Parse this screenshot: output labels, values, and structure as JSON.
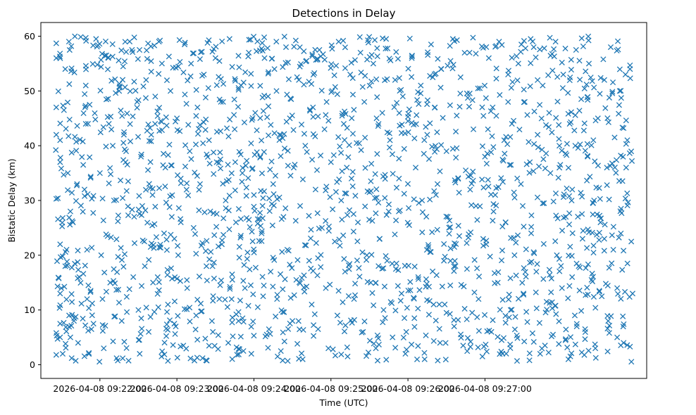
{
  "chart_data": {
    "type": "scatter",
    "title": "Detections in Delay",
    "xlabel": "Time (UTC)",
    "ylabel": "Bistatic Delay (km)",
    "x_unit": "seconds after 2026-04-08 09:21:25 UTC",
    "xlim": [
      -11,
      461
    ],
    "ylim": [
      -2.5,
      62.5
    ],
    "x_ticks": [
      {
        "value": 35,
        "label": "2026-04-08 09:22:00"
      },
      {
        "value": 95,
        "label": "2026-04-08 09:23:00"
      },
      {
        "value": 155,
        "label": "2026-04-08 09:24:00"
      },
      {
        "value": 215,
        "label": "2026-04-08 09:25:00"
      },
      {
        "value": 275,
        "label": "2026-04-08 09:26:00"
      },
      {
        "value": 335,
        "label": "2026-04-08 09:27:00"
      }
    ],
    "y_ticks": [
      {
        "value": 0,
        "label": "0"
      },
      {
        "value": 10,
        "label": "10"
      },
      {
        "value": 20,
        "label": "20"
      },
      {
        "value": 30,
        "label": "30"
      },
      {
        "value": 40,
        "label": "40"
      },
      {
        "value": 50,
        "label": "50"
      },
      {
        "value": 60,
        "label": "60"
      }
    ],
    "marker": "x",
    "color": "#1f77b4",
    "grid": false,
    "legend": "none",
    "generated_points": {
      "count": 1500,
      "x_range": [
        0,
        450
      ],
      "y_range": [
        0.5,
        60
      ],
      "note": "dense uniform-like cloud of x markers"
    },
    "series": [
      {
        "name": "detections",
        "points": [
          [
            1,
            58.7
          ],
          [
            1,
            56
          ],
          [
            1,
            47
          ],
          [
            1,
            42
          ],
          [
            1,
            30.3
          ],
          [
            1,
            5.8
          ],
          [
            1,
            1.8
          ],
          [
            4,
            41
          ],
          [
            4,
            37
          ],
          [
            4,
            22
          ],
          [
            4,
            13
          ],
          [
            4,
            7.5
          ],
          [
            4,
            5
          ],
          [
            6,
            26.8
          ],
          [
            6,
            19.8
          ],
          [
            6,
            2
          ],
          [
            7,
            46.5
          ],
          [
            8,
            18
          ],
          [
            8,
            54
          ],
          [
            10,
            35
          ],
          [
            11,
            9
          ],
          [
            12,
            28
          ],
          [
            12,
            5
          ],
          [
            13,
            1.2
          ],
          [
            14,
            26
          ],
          [
            15,
            8.5
          ],
          [
            18,
            4
          ],
          [
            19,
            16
          ],
          [
            22,
            36.5
          ],
          [
            23,
            32
          ],
          [
            24,
            59.7
          ],
          [
            24,
            51
          ],
          [
            24,
            44
          ],
          [
            25,
            21
          ],
          [
            25,
            12
          ],
          [
            26,
            14.5
          ],
          [
            27,
            47.5
          ],
          [
            29,
            11.2
          ],
          [
            30,
            7.5
          ],
          [
            32,
            59.5
          ],
          [
            33,
            54.8
          ],
          [
            35,
            35
          ],
          [
            36,
            20
          ],
          [
            37,
            12
          ],
          [
            38,
            3
          ],
          [
            40,
            56.5
          ],
          [
            41,
            23.5
          ],
          [
            42,
            44
          ],
          [
            43,
            15
          ],
          [
            45,
            40
          ],
          [
            46,
            30
          ],
          [
            48,
            1.2
          ],
          [
            49,
            26.2
          ],
          [
            50,
            50
          ],
          [
            52,
            8
          ],
          [
            54,
            4.2
          ],
          [
            55,
            37
          ],
          [
            57,
            33.5
          ],
          [
            58,
            13.8
          ],
          [
            60,
            57.5
          ],
          [
            62,
            22.2
          ],
          [
            64,
            48
          ],
          [
            65,
            10
          ],
          [
            66,
            2
          ],
          [
            67,
            38
          ],
          [
            68,
            29
          ],
          [
            70,
            18
          ],
          [
            71,
            52
          ],
          [
            73,
            6
          ],
          [
            75,
            42
          ],
          [
            76,
            31
          ],
          [
            78,
            44
          ],
          [
            80,
            16
          ],
          [
            81,
            59
          ],
          [
            83,
            1.5
          ],
          [
            85,
            24
          ],
          [
            86,
            36
          ],
          [
            88,
            11
          ],
          [
            90,
            50
          ],
          [
            91,
            27
          ],
          [
            93,
            7.5
          ],
          [
            95,
            45
          ],
          [
            96,
            20
          ],
          [
            98,
            34
          ],
          [
            100,
            3.5
          ],
          [
            101,
            58.5
          ],
          [
            103,
            14
          ],
          [
            105,
            39
          ],
          [
            106,
            55
          ],
          [
            108,
            25
          ],
          [
            110,
            9
          ],
          [
            111,
            47
          ],
          [
            113,
            33
          ],
          [
            115,
            1.2
          ],
          [
            116,
            53
          ],
          [
            118,
            18
          ],
          [
            120,
            41
          ],
          [
            121,
            28
          ],
          [
            123,
            6
          ],
          [
            125,
            56
          ],
          [
            126,
            37
          ],
          [
            128,
            12
          ],
          [
            130,
            22
          ],
          [
            131,
            48
          ],
          [
            133,
            30
          ],
          [
            135,
            4
          ],
          [
            136,
            59.5
          ],
          [
            138,
            16.5
          ],
          [
            140,
            43
          ],
          [
            141,
            26
          ],
          [
            143,
            8
          ],
          [
            145,
            51
          ],
          [
            146,
            35
          ],
          [
            148,
            14
          ],
          [
            150,
            20.5
          ],
          [
            151,
            57
          ],
          [
            153,
            2
          ],
          [
            155,
            31
          ],
          [
            156,
            46
          ],
          [
            158,
            10.5
          ],
          [
            160,
            38
          ],
          [
            161,
            24
          ],
          [
            163,
            59.8
          ],
          [
            165,
            5.5
          ],
          [
            166,
            49
          ],
          [
            168,
            17
          ],
          [
            170,
            33
          ],
          [
            171,
            54
          ],
          [
            173,
            12
          ],
          [
            175,
            42
          ],
          [
            176,
            2.5
          ],
          [
            178,
            27
          ],
          [
            180,
            58
          ],
          [
            181,
            21
          ],
          [
            183,
            45
          ],
          [
            185,
            8
          ],
          [
            186,
            36
          ],
          [
            188,
            15.5
          ],
          [
            190,
            52
          ],
          [
            191,
            29
          ],
          [
            193,
            1
          ],
          [
            195,
            40
          ],
          [
            196,
            55.5
          ],
          [
            198,
            19
          ],
          [
            200,
            11
          ],
          [
            201,
            47
          ],
          [
            203,
            32
          ],
          [
            205,
            6.5
          ],
          [
            206,
            57.5
          ],
          [
            208,
            25
          ],
          [
            210,
            43
          ],
          [
            211,
            14
          ],
          [
            213,
            3
          ],
          [
            215,
            37
          ],
          [
            216,
            50
          ],
          [
            218,
            22.5
          ],
          [
            220,
            9
          ],
          [
            221,
            59
          ],
          [
            223,
            30
          ],
          [
            225,
            44
          ],
          [
            226,
            17
          ],
          [
            228,
            1.5
          ],
          [
            230,
            53
          ],
          [
            231,
            34
          ],
          [
            233,
            12
          ],
          [
            235,
            40.5
          ],
          [
            236,
            26
          ],
          [
            238,
            57
          ],
          [
            240,
            6
          ],
          [
            241,
            48
          ],
          [
            243,
            20
          ],
          [
            245,
            31.5
          ],
          [
            246,
            15
          ],
          [
            248,
            55
          ],
          [
            250,
            3
          ],
          [
            251,
            38.5
          ],
          [
            253,
            23
          ],
          [
            255,
            46
          ],
          [
            256,
            10
          ],
          [
            258,
            59.5
          ],
          [
            260,
            28
          ],
          [
            261,
            41
          ],
          [
            263,
            5
          ],
          [
            265,
            52
          ],
          [
            266,
            18.5
          ],
          [
            268,
            34
          ],
          [
            270,
            13
          ],
          [
            271,
            49
          ],
          [
            273,
            2
          ],
          [
            275,
            44.5
          ],
          [
            276,
            25.5
          ],
          [
            278,
            56
          ],
          [
            280,
            8.5
          ],
          [
            281,
            36
          ],
          [
            283,
            16
          ],
          [
            285,
            51
          ],
          [
            286,
            30
          ],
          [
            288,
            1
          ],
          [
            290,
            42
          ],
          [
            291,
            21.5
          ],
          [
            293,
            58.5
          ],
          [
            295,
            11
          ],
          [
            296,
            47
          ],
          [
            298,
            33
          ],
          [
            300,
            4
          ],
          [
            301,
            54
          ],
          [
            303,
            19
          ],
          [
            305,
            39
          ],
          [
            306,
            27
          ],
          [
            308,
            14.5
          ],
          [
            310,
            59.5
          ],
          [
            311,
            7
          ],
          [
            313,
            45.5
          ],
          [
            315,
            23.5
          ],
          [
            316,
            52.5
          ],
          [
            318,
            3.5
          ],
          [
            320,
            35.5
          ],
          [
            321,
            17.5
          ],
          [
            323,
            57
          ],
          [
            325,
            9.5
          ],
          [
            326,
            43
          ],
          [
            328,
            29
          ],
          [
            330,
            12
          ],
          [
            331,
            50.5
          ],
          [
            333,
            1.5
          ],
          [
            335,
            38
          ],
          [
            336,
            22
          ],
          [
            338,
            56
          ],
          [
            340,
            6
          ],
          [
            341,
            47
          ],
          [
            343,
            31
          ],
          [
            345,
            15
          ],
          [
            346,
            59
          ],
          [
            348,
            4.5
          ],
          [
            350,
            41
          ],
          [
            351,
            26
          ],
          [
            353,
            53
          ],
          [
            355,
            10
          ],
          [
            356,
            44
          ],
          [
            358,
            20
          ],
          [
            360,
            0.7
          ],
          [
            361,
            55
          ],
          [
            363,
            33
          ],
          [
            365,
            13
          ],
          [
            366,
            48
          ],
          [
            368,
            7.8
          ],
          [
            370,
            37
          ],
          [
            371,
            24
          ],
          [
            373,
            58
          ],
          [
            375,
            17
          ],
          [
            376,
            42
          ],
          [
            378,
            2
          ],
          [
            380,
            51
          ],
          [
            381,
            29.5
          ],
          [
            383,
            11.5
          ],
          [
            385,
            46
          ],
          [
            386,
            35
          ],
          [
            388,
            5.5
          ],
          [
            390,
            59
          ],
          [
            391,
            20
          ],
          [
            393,
            40
          ],
          [
            395,
            14
          ],
          [
            396,
            53
          ],
          [
            398,
            27
          ],
          [
            400,
            1
          ],
          [
            401,
            44
          ],
          [
            403,
            32
          ],
          [
            405,
            9
          ],
          [
            406,
            57.5
          ],
          [
            408,
            18
          ],
          [
            410,
            48.5
          ],
          [
            411,
            23
          ],
          [
            413,
            6.5
          ],
          [
            415,
            38
          ],
          [
            416,
            55
          ],
          [
            418,
            15.5
          ],
          [
            420,
            30
          ],
          [
            421,
            3
          ],
          [
            423,
            45
          ],
          [
            425,
            26
          ],
          [
            426,
            12.5
          ],
          [
            428,
            52
          ],
          [
            430,
            36
          ],
          [
            431,
            8
          ],
          [
            433,
            58
          ],
          [
            435,
            21
          ],
          [
            436,
            41.5
          ],
          [
            438,
            14
          ],
          [
            440,
            50
          ],
          [
            441,
            28.5
          ],
          [
            443,
            4
          ],
          [
            445,
            36
          ],
          [
            446,
            18.5
          ],
          [
            448,
            54
          ],
          [
            449,
            22.5
          ],
          [
            450,
            13
          ]
        ]
      }
    ]
  }
}
